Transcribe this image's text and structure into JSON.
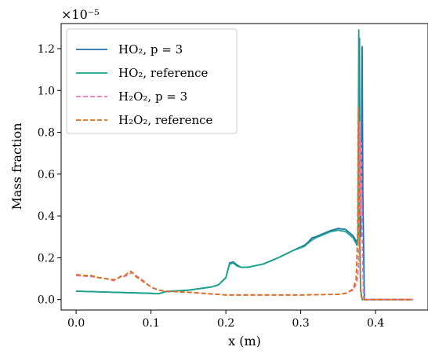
{
  "chart_data": {
    "type": "line",
    "xlabel": "x (m)",
    "ylabel": "Mass fraction",
    "y_multiplier": "×10⁻⁵",
    "xlim": [
      -0.02,
      0.47
    ],
    "ylim": [
      -0.05,
      1.32
    ],
    "x_ticks": [
      0.0,
      0.1,
      0.2,
      0.3,
      0.4
    ],
    "x_tick_labels": [
      "0.0",
      "0.1",
      "0.2",
      "0.3",
      "0.4"
    ],
    "y_ticks": [
      0.0,
      0.2,
      0.4,
      0.6,
      0.8,
      1.0,
      1.2
    ],
    "y_tick_labels": [
      "0.0",
      "0.2",
      "0.4",
      "0.6",
      "0.8",
      "1.0",
      "1.2"
    ],
    "grid": false,
    "legend_position": "top-left",
    "series": [
      {
        "name": "HO₂, p = 3",
        "color": "#1f6fa8",
        "dash": "solid",
        "points": [
          [
            0.0,
            0.04
          ],
          [
            0.05,
            0.035
          ],
          [
            0.1,
            0.03
          ],
          [
            0.11,
            0.028
          ],
          [
            0.12,
            0.038
          ],
          [
            0.15,
            0.045
          ],
          [
            0.18,
            0.06
          ],
          [
            0.19,
            0.07
          ],
          [
            0.2,
            0.105
          ],
          [
            0.205,
            0.175
          ],
          [
            0.21,
            0.18
          ],
          [
            0.215,
            0.165
          ],
          [
            0.22,
            0.155
          ],
          [
            0.23,
            0.155
          ],
          [
            0.25,
            0.17
          ],
          [
            0.27,
            0.2
          ],
          [
            0.29,
            0.235
          ],
          [
            0.305,
            0.26
          ],
          [
            0.31,
            0.275
          ],
          [
            0.315,
            0.295
          ],
          [
            0.32,
            0.3
          ],
          [
            0.33,
            0.315
          ],
          [
            0.34,
            0.33
          ],
          [
            0.35,
            0.34
          ],
          [
            0.36,
            0.335
          ],
          [
            0.37,
            0.305
          ],
          [
            0.375,
            0.275
          ],
          [
            0.377,
            0.3
          ],
          [
            0.378,
            0.9
          ],
          [
            0.3785,
            1.25
          ],
          [
            0.379,
            0.6
          ],
          [
            0.38,
            0.3
          ],
          [
            0.381,
            0.6
          ],
          [
            0.382,
            1.21
          ],
          [
            0.383,
            0.5
          ],
          [
            0.385,
            0.0
          ],
          [
            0.4,
            0.0
          ],
          [
            0.45,
            0.0
          ]
        ]
      },
      {
        "name": "HO₂, reference",
        "color": "#17a589",
        "dash": "solid",
        "points": [
          [
            0.0,
            0.04
          ],
          [
            0.05,
            0.035
          ],
          [
            0.1,
            0.03
          ],
          [
            0.11,
            0.028
          ],
          [
            0.12,
            0.038
          ],
          [
            0.15,
            0.045
          ],
          [
            0.18,
            0.06
          ],
          [
            0.19,
            0.07
          ],
          [
            0.2,
            0.105
          ],
          [
            0.205,
            0.17
          ],
          [
            0.21,
            0.175
          ],
          [
            0.215,
            0.16
          ],
          [
            0.22,
            0.155
          ],
          [
            0.23,
            0.155
          ],
          [
            0.25,
            0.17
          ],
          [
            0.27,
            0.2
          ],
          [
            0.29,
            0.235
          ],
          [
            0.305,
            0.255
          ],
          [
            0.31,
            0.27
          ],
          [
            0.315,
            0.285
          ],
          [
            0.32,
            0.295
          ],
          [
            0.33,
            0.31
          ],
          [
            0.34,
            0.325
          ],
          [
            0.35,
            0.332
          ],
          [
            0.36,
            0.325
          ],
          [
            0.37,
            0.295
          ],
          [
            0.375,
            0.26
          ],
          [
            0.3765,
            0.28
          ],
          [
            0.377,
            0.8
          ],
          [
            0.3775,
            1.29
          ],
          [
            0.378,
            0.6
          ],
          [
            0.379,
            0.3
          ],
          [
            0.38,
            0.05
          ],
          [
            0.382,
            0.0
          ],
          [
            0.4,
            0.0
          ],
          [
            0.45,
            0.0
          ]
        ]
      },
      {
        "name": "H₂O₂, p = 3",
        "color": "#e377c2",
        "dash": "dashed",
        "points": [
          [
            0.0,
            0.115
          ],
          [
            0.02,
            0.11
          ],
          [
            0.04,
            0.1
          ],
          [
            0.05,
            0.09
          ],
          [
            0.055,
            0.1
          ],
          [
            0.06,
            0.115
          ],
          [
            0.065,
            0.11
          ],
          [
            0.07,
            0.12
          ],
          [
            0.075,
            0.13
          ],
          [
            0.08,
            0.115
          ],
          [
            0.09,
            0.09
          ],
          [
            0.1,
            0.06
          ],
          [
            0.11,
            0.045
          ],
          [
            0.12,
            0.04
          ],
          [
            0.15,
            0.035
          ],
          [
            0.2,
            0.022
          ],
          [
            0.3,
            0.022
          ],
          [
            0.35,
            0.025
          ],
          [
            0.36,
            0.03
          ],
          [
            0.37,
            0.045
          ],
          [
            0.375,
            0.08
          ],
          [
            0.377,
            0.15
          ],
          [
            0.378,
            0.4
          ],
          [
            0.379,
            0.85
          ],
          [
            0.3795,
            0.65
          ],
          [
            0.38,
            0.4
          ],
          [
            0.381,
            0.75
          ],
          [
            0.382,
            0.3
          ],
          [
            0.384,
            0.0
          ],
          [
            0.4,
            0.0
          ],
          [
            0.45,
            0.0
          ]
        ]
      },
      {
        "name": "H₂O₂, reference",
        "color": "#e06c10",
        "dash": "dashed",
        "points": [
          [
            0.0,
            0.12
          ],
          [
            0.01,
            0.115
          ],
          [
            0.02,
            0.115
          ],
          [
            0.03,
            0.105
          ],
          [
            0.04,
            0.1
          ],
          [
            0.05,
            0.095
          ],
          [
            0.055,
            0.1
          ],
          [
            0.06,
            0.11
          ],
          [
            0.065,
            0.115
          ],
          [
            0.07,
            0.13
          ],
          [
            0.073,
            0.135
          ],
          [
            0.076,
            0.125
          ],
          [
            0.08,
            0.11
          ],
          [
            0.09,
            0.085
          ],
          [
            0.1,
            0.06
          ],
          [
            0.11,
            0.045
          ],
          [
            0.12,
            0.04
          ],
          [
            0.15,
            0.035
          ],
          [
            0.2,
            0.022
          ],
          [
            0.3,
            0.022
          ],
          [
            0.35,
            0.025
          ],
          [
            0.36,
            0.03
          ],
          [
            0.37,
            0.05
          ],
          [
            0.374,
            0.1
          ],
          [
            0.376,
            0.3
          ],
          [
            0.3765,
            0.6
          ],
          [
            0.377,
            0.92
          ],
          [
            0.378,
            0.5
          ],
          [
            0.379,
            0.2
          ],
          [
            0.38,
            0.03
          ],
          [
            0.382,
            0.0
          ],
          [
            0.4,
            0.0
          ],
          [
            0.45,
            0.0
          ]
        ]
      }
    ]
  }
}
